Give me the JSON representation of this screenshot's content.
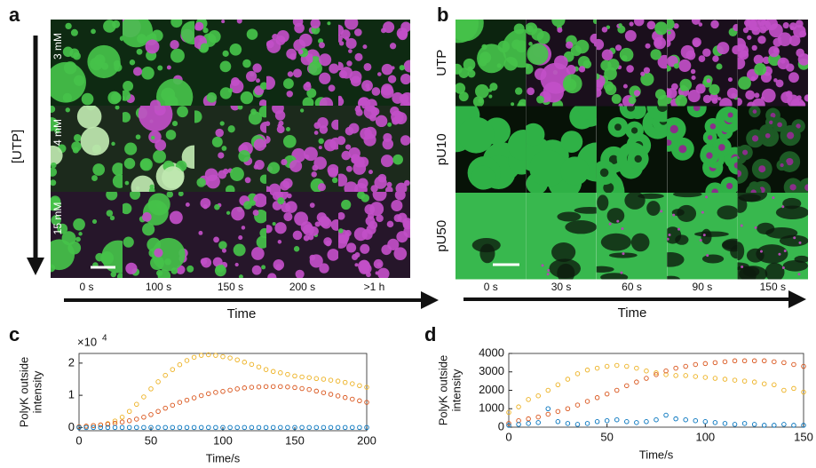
{
  "panel_a": {
    "label": "a",
    "axis_label": "[UTP]",
    "rows": [
      "3 mM",
      "4 mM",
      "15 mM"
    ],
    "columns": [
      "0 s",
      "100 s",
      "150 s",
      "200 s",
      ">1 h"
    ],
    "time_label": "Time"
  },
  "panel_b": {
    "label": "b",
    "rows": [
      "UTP",
      "pU10",
      "pU50"
    ],
    "columns": [
      "0 s",
      "30 s",
      "60 s",
      "90 s",
      "150 s"
    ],
    "time_label": "Time"
  },
  "chart_data": [
    {
      "type": "scatter",
      "panel": "c",
      "ylabel": [
        "PolyK outside",
        "intensity"
      ],
      "xlabel": "Time/s",
      "y_multiplier": {
        "base": "×10",
        "exponent": "4"
      },
      "x": [
        0,
        5,
        10,
        15,
        20,
        25,
        30,
        35,
        40,
        45,
        50,
        55,
        60,
        65,
        70,
        75,
        80,
        85,
        90,
        95,
        100,
        105,
        110,
        115,
        120,
        125,
        130,
        135,
        140,
        145,
        150,
        155,
        160,
        165,
        170,
        175,
        180,
        185,
        190,
        195,
        200
      ],
      "xlim": [
        0,
        200
      ],
      "xticks": [
        0,
        50,
        100,
        150,
        200
      ],
      "ylim": [
        -0.1,
        2.3
      ],
      "yticks": [
        0,
        1,
        2
      ],
      "series": [
        {
          "color": "#edb120",
          "values": [
            0.02,
            0.04,
            0.06,
            0.08,
            0.12,
            0.2,
            0.32,
            0.5,
            0.72,
            0.95,
            1.2,
            1.42,
            1.62,
            1.8,
            1.95,
            2.08,
            2.18,
            2.24,
            2.26,
            2.24,
            2.2,
            2.16,
            2.1,
            2.03,
            1.96,
            1.88,
            1.8,
            1.74,
            1.7,
            1.65,
            1.6,
            1.57,
            1.55,
            1.52,
            1.5,
            1.47,
            1.44,
            1.4,
            1.36,
            1.3,
            1.25
          ]
        },
        {
          "color": "#d95319",
          "values": [
            0.02,
            0.04,
            0.06,
            0.08,
            0.1,
            0.13,
            0.17,
            0.21,
            0.26,
            0.32,
            0.4,
            0.5,
            0.6,
            0.69,
            0.78,
            0.85,
            0.92,
            0.99,
            1.05,
            1.09,
            1.12,
            1.16,
            1.2,
            1.23,
            1.25,
            1.26,
            1.27,
            1.27,
            1.27,
            1.26,
            1.24,
            1.21,
            1.18,
            1.13,
            1.08,
            1.03,
            0.98,
            0.93,
            0.88,
            0.83,
            0.78
          ]
        },
        {
          "color": "#0072bd",
          "values": [
            0,
            0,
            0,
            0,
            0,
            0,
            0,
            0,
            0,
            0,
            0,
            0,
            0,
            0,
            0,
            0,
            0,
            0,
            0,
            0,
            0,
            0,
            0,
            0,
            0,
            0,
            0,
            0,
            0,
            0,
            0,
            0,
            0,
            0,
            0,
            0,
            0,
            0,
            0,
            0,
            0
          ]
        }
      ]
    },
    {
      "type": "scatter",
      "panel": "d",
      "ylabel": [
        "PolyK outside",
        "intensity"
      ],
      "xlabel": "Time/s",
      "x": [
        0,
        5,
        10,
        15,
        20,
        25,
        30,
        35,
        40,
        45,
        50,
        55,
        60,
        65,
        70,
        75,
        80,
        85,
        90,
        95,
        100,
        105,
        110,
        115,
        120,
        125,
        130,
        135,
        140,
        145,
        150
      ],
      "xlim": [
        0,
        150
      ],
      "xticks": [
        0,
        50,
        100,
        150
      ],
      "ylim": [
        0,
        4000
      ],
      "yticks": [
        0,
        1000,
        2000,
        3000,
        4000
      ],
      "series": [
        {
          "color": "#edb120",
          "values": [
            800,
            1100,
            1500,
            1700,
            2000,
            2300,
            2600,
            2900,
            3100,
            3200,
            3300,
            3350,
            3300,
            3200,
            3050,
            2950,
            2850,
            2800,
            2800,
            2750,
            2700,
            2650,
            2600,
            2550,
            2500,
            2450,
            2350,
            2300,
            2000,
            2100,
            1900
          ]
        },
        {
          "color": "#d95319",
          "values": [
            200,
            350,
            450,
            550,
            700,
            850,
            1000,
            1200,
            1400,
            1600,
            1800,
            2000,
            2250,
            2450,
            2650,
            2850,
            3050,
            3200,
            3300,
            3400,
            3450,
            3500,
            3550,
            3600,
            3600,
            3600,
            3600,
            3550,
            3500,
            3400,
            3300
          ]
        },
        {
          "color": "#0072bd",
          "values": [
            100,
            150,
            200,
            250,
            1000,
            300,
            200,
            150,
            200,
            300,
            350,
            400,
            300,
            250,
            300,
            400,
            650,
            450,
            400,
            350,
            300,
            250,
            200,
            150,
            200,
            150,
            100,
            100,
            150,
            100,
            100
          ]
        }
      ]
    }
  ]
}
